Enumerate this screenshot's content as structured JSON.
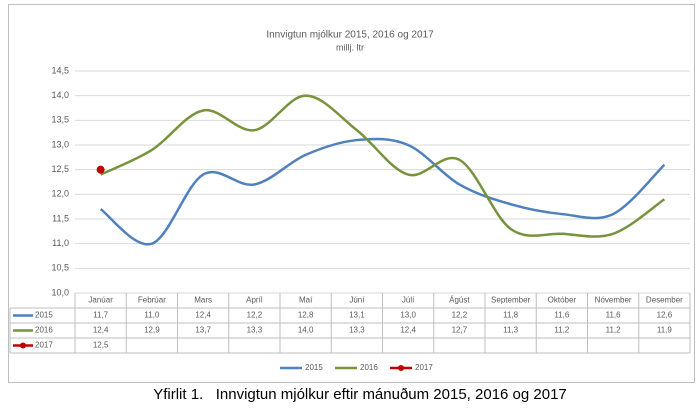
{
  "chart_data": {
    "type": "line",
    "title": "Innvigtun mjólkur 2015, 2016 og 2017",
    "subtitle": "millj. ltr",
    "caption": "Yfirlit 1.   Innvigtun mjólkur eftir mánuðum 2015, 2016 og 2017",
    "categories": [
      "Janúar",
      "Febrúar",
      "Mars",
      "Apríl",
      "Maí",
      "Júní",
      "Júlí",
      "Ágúst",
      "September",
      "Október",
      "Nóvember",
      "Desember"
    ],
    "series": [
      {
        "name": "2015",
        "color": "#4f81bd",
        "marker": false,
        "values": [
          11.7,
          11.0,
          12.4,
          12.2,
          12.8,
          13.1,
          13.0,
          12.2,
          11.8,
          11.6,
          11.6,
          12.6
        ],
        "value_labels": [
          "11,7",
          "11,0",
          "12,4",
          "12,2",
          "12,8",
          "13,1",
          "13,0",
          "12,2",
          "11,8",
          "11,6",
          "11,6",
          "12,6"
        ]
      },
      {
        "name": "2016",
        "color": "#77933c",
        "marker": false,
        "values": [
          12.4,
          12.9,
          13.7,
          13.3,
          14.0,
          13.3,
          12.4,
          12.7,
          11.3,
          11.2,
          11.2,
          11.9
        ],
        "value_labels": [
          "12,4",
          "12,9",
          "13,7",
          "13,3",
          "14,0",
          "13,3",
          "12,4",
          "12,7",
          "11,3",
          "11,2",
          "11,2",
          "11,9"
        ]
      },
      {
        "name": "2017",
        "color": "#c00000",
        "marker": true,
        "values": [
          12.5,
          null,
          null,
          null,
          null,
          null,
          null,
          null,
          null,
          null,
          null,
          null
        ],
        "value_labels": [
          "12,5",
          null,
          null,
          null,
          null,
          null,
          null,
          null,
          null,
          null,
          null,
          null
        ]
      }
    ],
    "ylim": [
      10,
      14.5
    ],
    "yticks": [
      {
        "value": 10,
        "label": "10,0"
      },
      {
        "value": 10.5,
        "label": "10,5"
      },
      {
        "value": 11,
        "label": "11,0"
      },
      {
        "value": 11.5,
        "label": "11,5"
      },
      {
        "value": 12,
        "label": "12,0"
      },
      {
        "value": 12.5,
        "label": "12,5"
      },
      {
        "value": 13,
        "label": "13,0"
      },
      {
        "value": 13.5,
        "label": "13,5"
      },
      {
        "value": 14,
        "label": "14,0"
      },
      {
        "value": 14.5,
        "label": "14,5"
      }
    ],
    "grid": true,
    "legend": "bottom"
  }
}
